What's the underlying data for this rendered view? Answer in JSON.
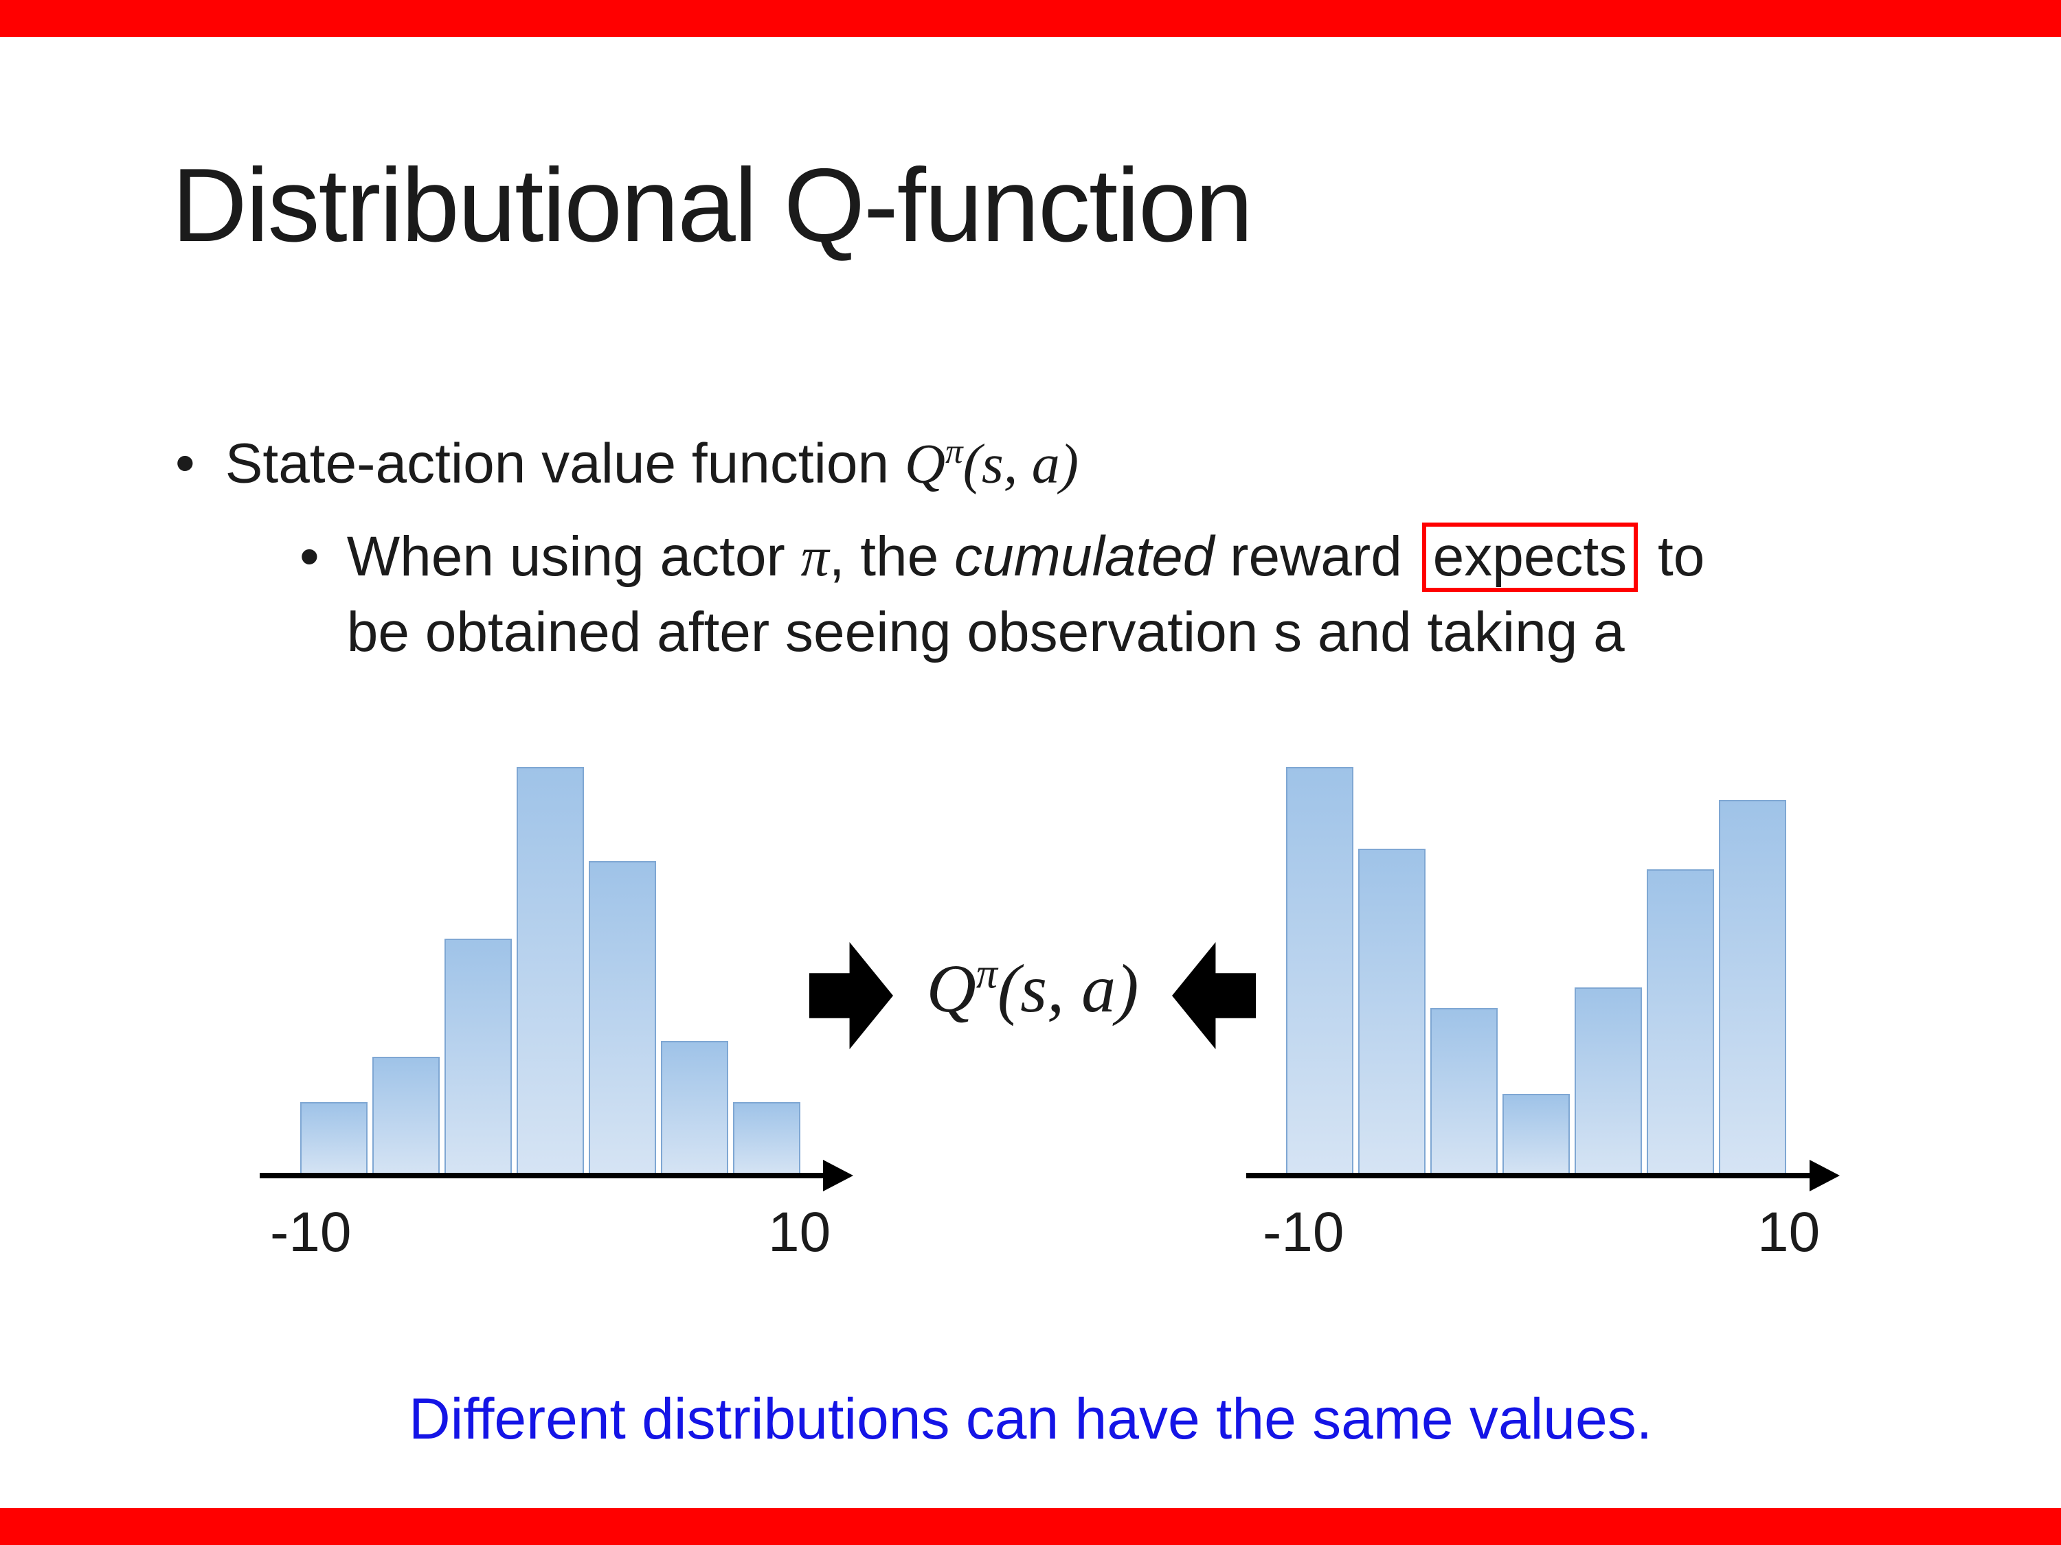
{
  "slide": {
    "title": "Distributional Q-function",
    "bullet1": {
      "marker": "•",
      "text": "State-action value function ",
      "q": "Q",
      "pi": "π",
      "args": "(s, a)"
    },
    "bullet2": {
      "marker": "•",
      "line1_a": "When using actor ",
      "line1_pi": "π",
      "line1_b": ", the ",
      "line1_cumulated": "cumulated",
      "line1_c": " reward ",
      "line1_boxed": "expects",
      "line1_d": " to",
      "line2": "be obtained after seeing observation s and taking a"
    },
    "formula": {
      "q": "Q",
      "pi": "π",
      "args": "(s, a)"
    },
    "footer": "Different distributions can have the same values."
  },
  "chart_data": [
    {
      "type": "bar",
      "description": "left histogram - unimodal (bell-shaped) reward distribution",
      "xtick_labels": [
        "-10",
        "10"
      ],
      "x_range": [
        -10,
        10
      ],
      "values": [
        0.18,
        0.29,
        0.58,
        1.0,
        0.77,
        0.33,
        0.18
      ],
      "xlabel": "",
      "ylabel": "",
      "grid": false,
      "legend": false
    },
    {
      "type": "bar",
      "description": "right histogram - bimodal (U-shaped) reward distribution",
      "xtick_labels": [
        "-10",
        "10"
      ],
      "x_range": [
        -10,
        10
      ],
      "values": [
        1.0,
        0.8,
        0.41,
        0.2,
        0.46,
        0.75,
        0.92
      ],
      "xlabel": "",
      "ylabel": "",
      "grid": false,
      "legend": false
    }
  ],
  "colors": {
    "accent_red": "#FF0000",
    "footer_blue": "#1414E6",
    "bar_fill_top": "#9FC3E8",
    "bar_fill_bottom": "#D6E4F4",
    "bar_border": "#7FA7D3",
    "arrow_black": "#000000"
  }
}
